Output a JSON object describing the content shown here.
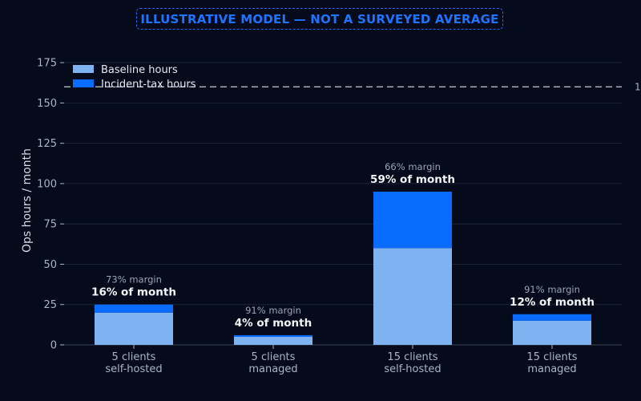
{
  "banner": "ILLUSTRATIVE MODEL — NOT A SURVEYED AVERAGE",
  "colors": {
    "baseline": "#7fb2f0",
    "incident": "#0a6bff",
    "background": "#050b1a",
    "grid": "#1b2438"
  },
  "chart_data": {
    "type": "bar",
    "stacked": true,
    "categories": [
      [
        "5 clients",
        "self-hosted"
      ],
      [
        "5 clients",
        "managed"
      ],
      [
        "15 clients",
        "self-hosted"
      ],
      [
        "15 clients",
        "managed"
      ]
    ],
    "series": [
      {
        "name": "Baseline hours",
        "values": [
          20,
          5,
          60,
          15
        ]
      },
      {
        "name": "Incident-tax hours",
        "values": [
          5,
          1,
          35,
          4
        ]
      }
    ],
    "annotations": [
      {
        "margin": "73% margin",
        "share": "16% of month"
      },
      {
        "margin": "91% margin",
        "share": "4% of month"
      },
      {
        "margin": "66% margin",
        "share": "59% of month"
      },
      {
        "margin": "91% margin",
        "share": "12% of month"
      }
    ],
    "reference_line": {
      "value": 160,
      "label": "1"
    },
    "ylabel": "Ops hours / month",
    "ylim": [
      0,
      185
    ],
    "yticks": [
      0,
      25,
      50,
      75,
      100,
      125,
      150,
      175
    ],
    "grid": true,
    "legend_position": "top-left"
  }
}
